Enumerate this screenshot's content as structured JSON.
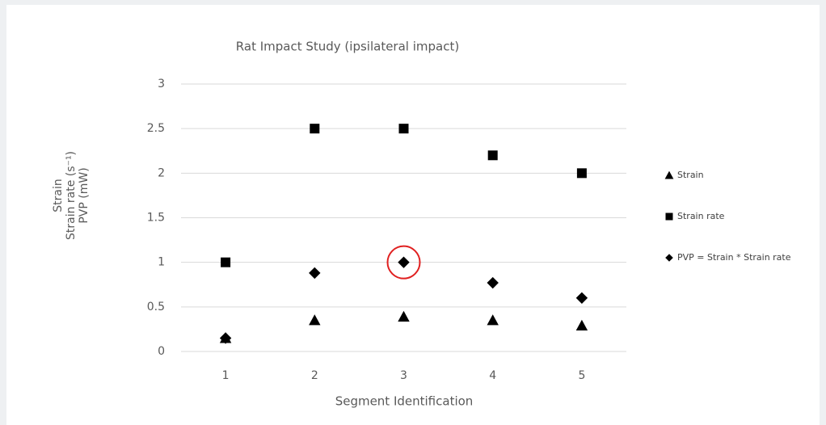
{
  "chart_data": {
    "type": "scatter",
    "title": "Rat Impact Study (ipsilateral impact)",
    "x_label": "Segment Identification",
    "y_label": [
      "Strain",
      "Strain rate (s⁻¹)",
      "PVP (mW)"
    ],
    "categories": [
      1,
      2,
      3,
      4,
      5
    ],
    "series": [
      {
        "name": "Strain",
        "color": "#000000",
        "marker": "triangle",
        "values": [
          0.15,
          0.35,
          0.39,
          0.35,
          0.29
        ]
      },
      {
        "name": "Strain rate",
        "color": "#000000",
        "marker": "square",
        "values": [
          1,
          2.5,
          2.5,
          2.2,
          2
        ]
      },
      {
        "name": "PVP = Strain * Strain rate",
        "color": "#000000",
        "marker": "diamond",
        "values": [
          0.15,
          0.88,
          1,
          0.77,
          0.6
        ]
      }
    ],
    "ylim": [
      0,
      3
    ],
    "yticks": [
      0,
      0.5,
      1,
      1.5,
      2,
      2.5,
      3
    ],
    "grid": true,
    "legend": "right"
  }
}
